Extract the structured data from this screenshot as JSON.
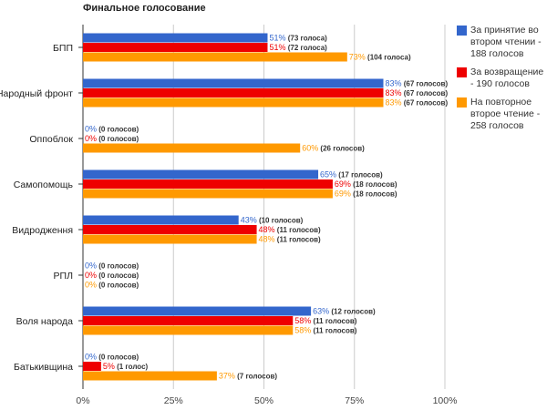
{
  "chart_data": {
    "type": "bar",
    "orientation": "horizontal",
    "title": "Финальное голосование",
    "categories": [
      "БПП",
      "Народный фронт",
      "Оппоблок",
      "Самопомощь",
      "Видродження",
      "РПЛ",
      "Воля народа",
      "Батькивщина"
    ],
    "xlim": [
      0,
      100
    ],
    "x_ticks": [
      "0%",
      "25%",
      "50%",
      "75%",
      "100%"
    ],
    "grid": true,
    "legend_position": "right",
    "series": [
      {
        "name": "За принятие во втором чтении - 188 голосов",
        "color": "#3366cc",
        "values": [
          51,
          83,
          0,
          65,
          43,
          0,
          63,
          0
        ],
        "labels": [
          "(73 голоса)",
          "(67 голосов)",
          "(0 голосов)",
          "(17 голосов)",
          "(10 голосов)",
          "(0 голосов)",
          "(12 голосов)",
          "(0 голосов)"
        ]
      },
      {
        "name": "За возвращение - 190 голосов",
        "color": "#ee0000",
        "values": [
          51,
          83,
          0,
          69,
          48,
          0,
          58,
          5
        ],
        "labels": [
          "(72 голоса)",
          "(67 голосов)",
          "(0 голосов)",
          "(18 голосов)",
          "(11 голосов)",
          "(0 голосов)",
          "(11 голосов)",
          "(1 голос)"
        ]
      },
      {
        "name": "На повторное второе чтение - 258 голосов",
        "color": "#ff9900",
        "values": [
          73,
          83,
          60,
          69,
          48,
          0,
          58,
          37
        ],
        "labels": [
          "(104 голоса)",
          "(67 голосов)",
          "(26 голосов)",
          "(18 голосов)",
          "(11 голосов)",
          "(0 голосов)",
          "(11 голосов)",
          "(7 голосов)"
        ]
      }
    ]
  }
}
